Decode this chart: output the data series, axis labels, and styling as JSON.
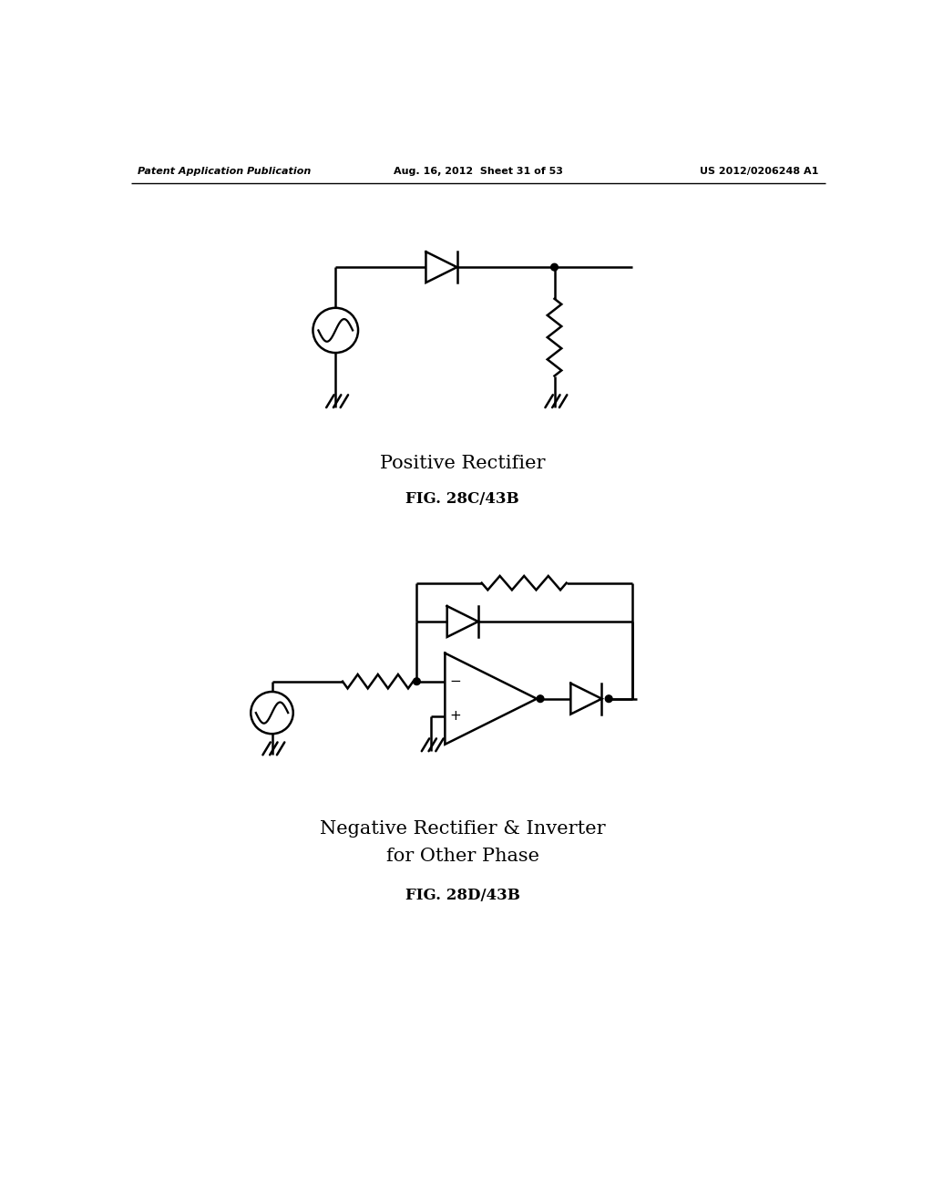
{
  "bg_color": "#ffffff",
  "line_color": "#000000",
  "line_width": 1.8,
  "header_left": "Patent Application Publication",
  "header_mid": "Aug. 16, 2012  Sheet 31 of 53",
  "header_right": "US 2012/0206248 A1",
  "fig1_label": "Positive Rectifier",
  "fig1_caption": "FIG. 28C/43B",
  "fig2_label_line1": "Negative Rectifier & Inverter",
  "fig2_label_line2": "for Other Phase",
  "fig2_caption": "FIG. 28D/43B"
}
